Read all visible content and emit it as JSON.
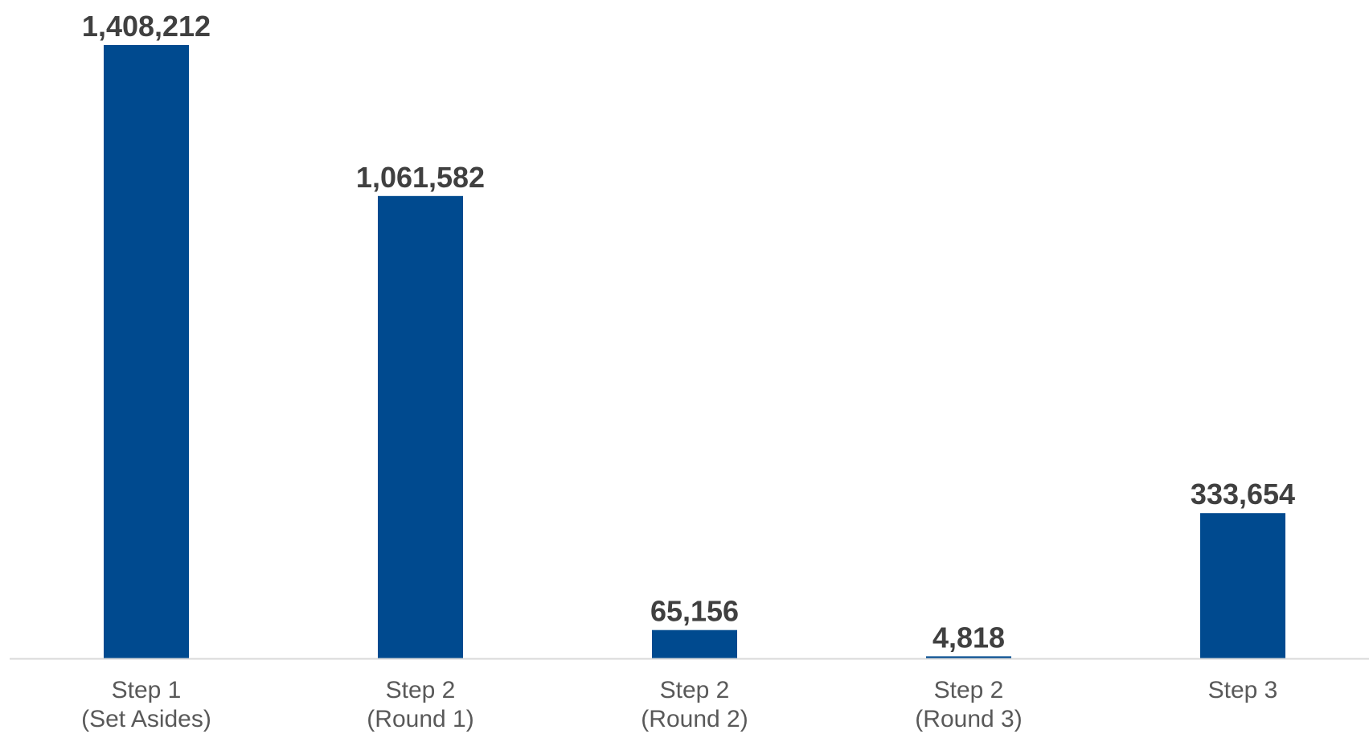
{
  "chart_data": {
    "type": "bar",
    "categories": [
      [
        "Step 1",
        "(Set Asides)"
      ],
      [
        "Step 2",
        "(Round 1)"
      ],
      [
        "Step 2",
        "(Round 2)"
      ],
      [
        "Step 2",
        "(Round 3)"
      ],
      [
        "Step 3"
      ]
    ],
    "values": [
      1408212,
      1061582,
      65156,
      4818,
      333654
    ],
    "value_labels": [
      "1,408,212",
      "1,061,582",
      "65,156",
      "4,818",
      "333,654"
    ],
    "title": "",
    "xlabel": "",
    "ylabel": "",
    "ylim": [
      0,
      1408212
    ],
    "grid": false,
    "legend": "none",
    "colors": {
      "bar": "#004A8F",
      "axis": "#D9D9D9",
      "value_label": "#404040",
      "tick_label": "#595959"
    }
  }
}
